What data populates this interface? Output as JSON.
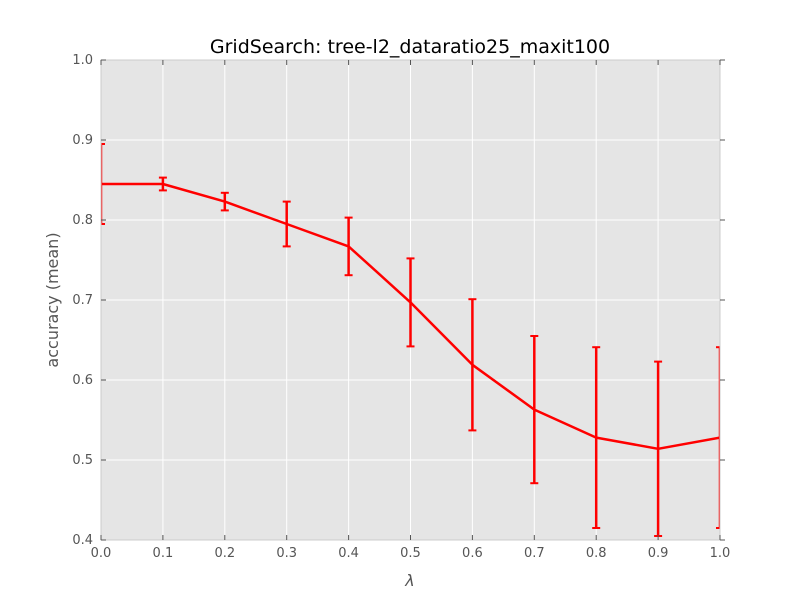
{
  "chart_data": {
    "type": "line",
    "title": "GridSearch: tree-l2_dataratio25_maxit100",
    "xlabel": "λ",
    "ylabel": "accuracy (mean)",
    "xlim": [
      0.0,
      1.0
    ],
    "ylim": [
      0.4,
      1.0
    ],
    "x_ticks": [
      "0.0",
      "0.1",
      "0.2",
      "0.3",
      "0.4",
      "0.5",
      "0.6",
      "0.7",
      "0.8",
      "0.9",
      "1.0"
    ],
    "y_ticks": [
      "0.4",
      "0.5",
      "0.6",
      "0.7",
      "0.8",
      "0.9",
      "1.0"
    ],
    "grid": true,
    "background_color": "#e5e5e5",
    "grid_color": "#ffffff",
    "series": [
      {
        "color": "#ff0000",
        "x": [
          0.0,
          0.1,
          0.2,
          0.3,
          0.4,
          0.5,
          0.6,
          0.7,
          0.8,
          0.9,
          1.0
        ],
        "y": [
          0.845,
          0.845,
          0.823,
          0.795,
          0.767,
          0.697,
          0.619,
          0.563,
          0.528,
          0.514,
          0.528
        ],
        "yerr": [
          0.05,
          0.008,
          0.011,
          0.028,
          0.036,
          0.055,
          0.082,
          0.092,
          0.113,
          0.109,
          0.113
        ]
      }
    ]
  }
}
